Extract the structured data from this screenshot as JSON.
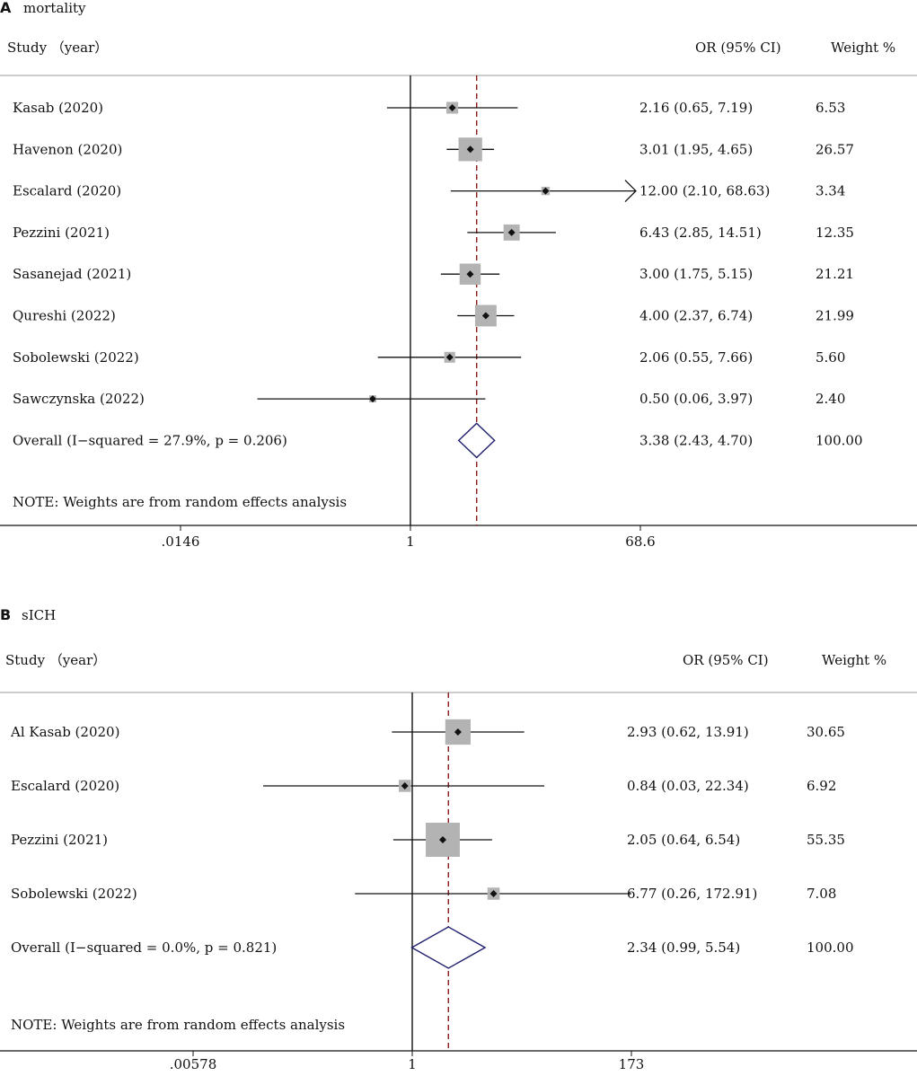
{
  "chart_data": [
    {
      "type": "forest",
      "panel_label": "A",
      "title": "mortality",
      "col_study": "Study （year）",
      "col_or": "OR (95% CI)",
      "col_weight": "Weight %",
      "note": "NOTE: Weights are from random effects analysis",
      "axis_ticks": [
        ".0146",
        "1",
        "68.6"
      ],
      "axis_tick_values": [
        0.0146,
        1,
        68.6
      ],
      "axis_range": [
        0.0146,
        68.6
      ],
      "scale": "log",
      "studies": [
        {
          "study": "Kasab (2020)",
          "or": 2.16,
          "lo": 0.65,
          "hi": 7.19,
          "ci_text": "2.16 (0.65, 7.19)",
          "weight": 6.53,
          "weight_text": "6.53"
        },
        {
          "study": "Havenon (2020)",
          "or": 3.01,
          "lo": 1.95,
          "hi": 4.65,
          "ci_text": "3.01 (1.95, 4.65)",
          "weight": 26.57,
          "weight_text": "26.57"
        },
        {
          "study": "Escalard (2020)",
          "or": 12.0,
          "lo": 2.1,
          "hi": 68.63,
          "ci_text": "12.00 (2.10, 68.63)",
          "weight": 3.34,
          "weight_text": "3.34",
          "arrow_right": true
        },
        {
          "study": "Pezzini (2021)",
          "or": 6.43,
          "lo": 2.85,
          "hi": 14.51,
          "ci_text": "6.43 (2.85, 14.51)",
          "weight": 12.35,
          "weight_text": "12.35"
        },
        {
          "study": "Sasanejad (2021)",
          "or": 3.0,
          "lo": 1.75,
          "hi": 5.15,
          "ci_text": "3.00 (1.75, 5.15)",
          "weight": 21.21,
          "weight_text": "21.21"
        },
        {
          "study": "Qureshi (2022)",
          "or": 4.0,
          "lo": 2.37,
          "hi": 6.74,
          "ci_text": "4.00 (2.37, 6.74)",
          "weight": 21.99,
          "weight_text": "21.99"
        },
        {
          "study": "Sobolewski (2022)",
          "or": 2.06,
          "lo": 0.55,
          "hi": 7.66,
          "ci_text": "2.06 (0.55, 7.66)",
          "weight": 5.6,
          "weight_text": "5.60"
        },
        {
          "study": "Sawczynska (2022)",
          "or": 0.5,
          "lo": 0.06,
          "hi": 3.97,
          "ci_text": "0.50 (0.06, 3.97)",
          "weight": 2.4,
          "weight_text": "2.40"
        }
      ],
      "overall": {
        "label": "Overall  (I−squared = 27.9%, p = 0.206)",
        "or": 3.38,
        "lo": 2.43,
        "hi": 4.7,
        "ci_text": "3.38 (2.43, 4.70)",
        "weight_text": "100.00"
      }
    },
    {
      "type": "forest",
      "panel_label": "B",
      "title": "sICH",
      "col_study": "Study （year）",
      "col_or": "OR (95% CI)",
      "col_weight": "Weight %",
      "note": "NOTE: Weights are from random effects analysis",
      "axis_ticks": [
        ".00578",
        "1",
        "173"
      ],
      "axis_tick_values": [
        0.00578,
        1,
        173
      ],
      "axis_range": [
        0.00578,
        173
      ],
      "scale": "log",
      "studies": [
        {
          "study": "Al Kasab (2020)",
          "or": 2.93,
          "lo": 0.62,
          "hi": 13.91,
          "ci_text": "2.93 (0.62, 13.91)",
          "weight": 30.65,
          "weight_text": "30.65"
        },
        {
          "study": "Escalard (2020)",
          "or": 0.84,
          "lo": 0.03,
          "hi": 22.34,
          "ci_text": "0.84 (0.03, 22.34)",
          "weight": 6.92,
          "weight_text": "6.92"
        },
        {
          "study": "Pezzini (2021)",
          "or": 2.05,
          "lo": 0.64,
          "hi": 6.54,
          "ci_text": "2.05 (0.64, 6.54)",
          "weight": 55.35,
          "weight_text": "55.35"
        },
        {
          "study": "Sobolewski (2022)",
          "or": 6.77,
          "lo": 0.26,
          "hi": 172.91,
          "ci_text": "6.77 (0.26, 172.91)",
          "weight": 7.08,
          "weight_text": "7.08"
        }
      ],
      "overall": {
        "label": "Overall  (I−squared = 0.0%, p = 0.821)",
        "or": 2.34,
        "lo": 0.99,
        "hi": 5.54,
        "ci_text": "2.34 (0.99, 5.54)",
        "weight_text": "100.00"
      }
    }
  ],
  "colors": {
    "text": "#111111",
    "box": "#b3b3b3",
    "diamond": "#1f1f6e",
    "reference_line": "#8b1a1a",
    "rule": "#999999"
  }
}
